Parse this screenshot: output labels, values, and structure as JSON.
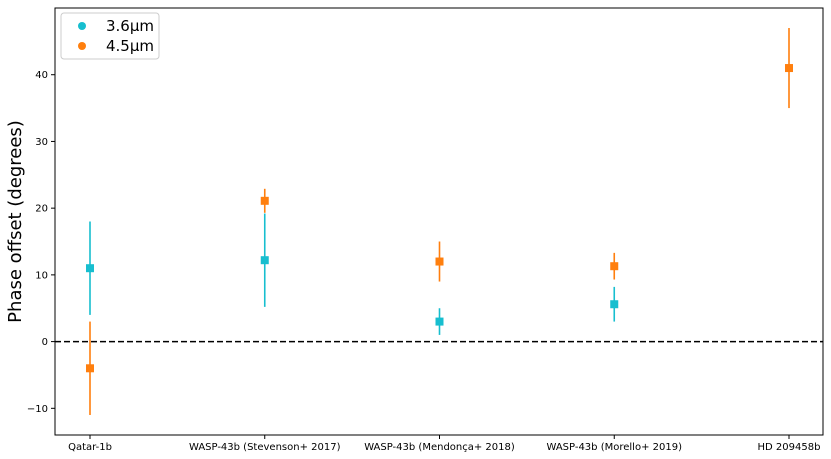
{
  "chart_data": {
    "type": "scatter",
    "title": "",
    "xlabel": "",
    "ylabel": "Phase offset (degrees)",
    "categories": [
      "Qatar-1b",
      "WASP-43b (Stevenson+ 2017)",
      "WASP-43b (Mendonça+ 2018)",
      "WASP-43b (Morello+ 2019)",
      "HD 209458b"
    ],
    "ylim": [
      -14,
      50
    ],
    "yticks": [
      -10,
      0,
      10,
      20,
      30,
      40
    ],
    "yticklabels": [
      "−10",
      "0",
      "10",
      "20",
      "30",
      "40"
    ],
    "grid": false,
    "legend_position": "top-left",
    "reference_line": {
      "y": 0,
      "style": "dashed"
    },
    "series": [
      {
        "name": "3.6μm",
        "color": "#17becf",
        "points": [
          {
            "category": "Qatar-1b",
            "y": 11,
            "err_low": 7,
            "err_high": 7
          },
          {
            "category": "WASP-43b (Stevenson+ 2017)",
            "y": 12.2,
            "err_low": 7,
            "err_high": 7
          },
          {
            "category": "WASP-43b (Mendonça+ 2018)",
            "y": 3,
            "err_low": 2,
            "err_high": 2
          },
          {
            "category": "WASP-43b (Morello+ 2019)",
            "y": 5.6,
            "err_low": 2.6,
            "err_high": 2.6
          }
        ]
      },
      {
        "name": "4.5μm",
        "color": "#ff7f0e",
        "points": [
          {
            "category": "Qatar-1b",
            "y": -4,
            "err_low": 7,
            "err_high": 7
          },
          {
            "category": "WASP-43b (Stevenson+ 2017)",
            "y": 21.1,
            "err_low": 1.8,
            "err_high": 1.8
          },
          {
            "category": "WASP-43b (Mendonça+ 2018)",
            "y": 12,
            "err_low": 3,
            "err_high": 3
          },
          {
            "category": "WASP-43b (Morello+ 2019)",
            "y": 11.3,
            "err_low": 2,
            "err_high": 2
          },
          {
            "category": "HD 209458b",
            "y": 41,
            "err_low": 6,
            "err_high": 6
          }
        ]
      }
    ]
  }
}
